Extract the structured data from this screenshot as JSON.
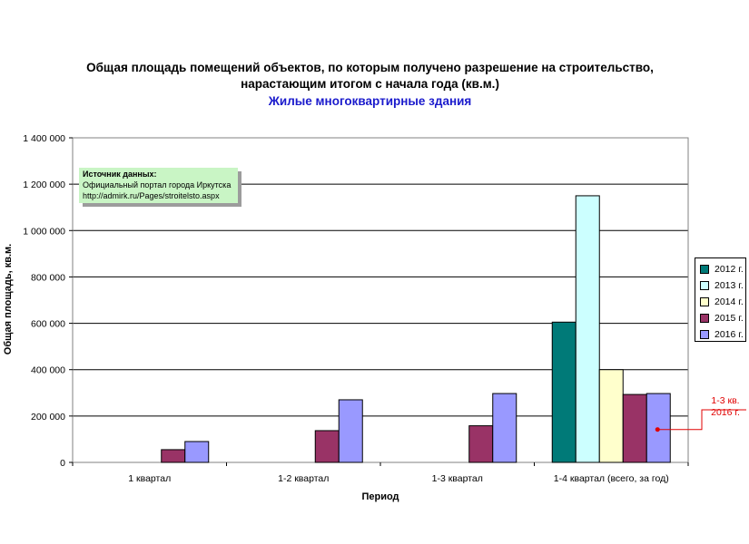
{
  "title_line1": "Общая площадь помещений объектов, по которым получено разрешение на строительство,",
  "title_line2": "нарастающим итогом с начала года (кв.м.)",
  "subtitle": "Жилые многоквартирные здания",
  "source": {
    "heading": "Источник данных:",
    "line1": "Официальный портал города Иркутска",
    "line2": "http://admirk.ru/Pages/stroitelsto.aspx"
  },
  "annotation": {
    "line1": "1-3 кв.",
    "line2": "2016 г.",
    "color": "#e00000"
  },
  "chart_data": {
    "type": "bar",
    "title": "Общая площадь помещений объектов, по которым получено разрешение на строительство, нарастающим итогом с начала года (кв.м.)",
    "subtitle": "Жилые многоквартирные здания",
    "xlabel": "Период",
    "ylabel": "Общая площадь, кв.м.",
    "ylim": [
      0,
      1400000
    ],
    "yticks": [
      0,
      200000,
      400000,
      600000,
      800000,
      1000000,
      1200000,
      1400000
    ],
    "ytick_labels": [
      "0",
      "200 000",
      "400 000",
      "600 000",
      "800 000",
      "1 000 000",
      "1 200 000",
      "1 400 000"
    ],
    "grid": true,
    "legend_position": "right",
    "categories": [
      "1 квартал",
      "1-2 квартал",
      "1-3 квартал",
      "1-4 квартал (всего, за год)"
    ],
    "series": [
      {
        "name": "2012 г.",
        "color": "#007a78",
        "values": [
          null,
          null,
          null,
          605000
        ]
      },
      {
        "name": "2013 г.",
        "color": "#ccffff",
        "values": [
          null,
          null,
          null,
          1150000
        ]
      },
      {
        "name": "2014 г.",
        "color": "#ffffcc",
        "values": [
          null,
          null,
          null,
          400000
        ]
      },
      {
        "name": "2015 г.",
        "color": "#993366",
        "values": [
          55000,
          137000,
          158000,
          293000
        ]
      },
      {
        "name": "2016 г.",
        "color": "#9999ff",
        "values": [
          90000,
          270000,
          297000,
          297000
        ]
      }
    ],
    "annotation_marker": {
      "category": "1-4 квартал (всего, за год)",
      "series": "2015 г.",
      "value": 142000
    }
  }
}
